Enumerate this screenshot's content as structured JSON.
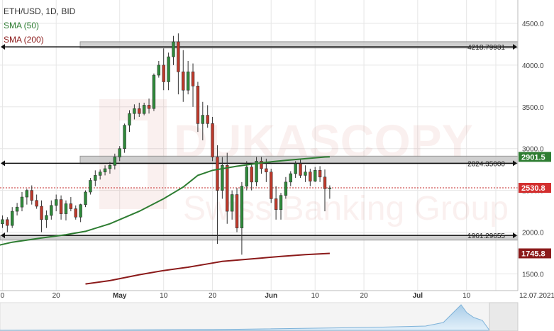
{
  "header": {
    "symbol": "ETH/USD, 1D, BID"
  },
  "watermark": {
    "line1": "DUKASCOPY",
    "line2": "Swiss Banking Group"
  },
  "colors": {
    "up": "#2e8b3a",
    "down": "#c0392b",
    "sma50": "#2e7d32",
    "sma200": "#8b1a1a",
    "grid": "#e6e6e6",
    "last": "#c62828"
  },
  "chart_data": {
    "type": "candlestick",
    "title": "",
    "ylim": [
      1300,
      4780
    ],
    "yticks": [
      1500,
      2000,
      2500,
      3000,
      3500,
      4000,
      4500
    ],
    "ytick_labels": [
      "1500.0",
      "2000.0",
      "2500.0",
      "3000.0",
      "3500.0",
      "4000.0",
      "4500.0"
    ],
    "x_range": [
      0,
      106
    ],
    "xticks": [
      {
        "x": 0,
        "label": "0",
        "bold": false
      },
      {
        "x": 11,
        "label": "20",
        "bold": false
      },
      {
        "x": 24,
        "label": "May",
        "bold": true
      },
      {
        "x": 33,
        "label": "10",
        "bold": false
      },
      {
        "x": 43,
        "label": "20",
        "bold": false
      },
      {
        "x": 55,
        "label": "Jun",
        "bold": true
      },
      {
        "x": 64,
        "label": "10",
        "bold": false
      },
      {
        "x": 74,
        "label": "20",
        "bold": false
      },
      {
        "x": 85,
        "label": "Jul",
        "bold": true
      },
      {
        "x": 95,
        "label": "10",
        "bold": false
      },
      {
        "x": 101,
        "label": "12.07.2021",
        "bold": false
      }
    ],
    "candles": [
      [
        2100,
        2200,
        2050,
        2150
      ],
      [
        2150,
        2180,
        2000,
        2080
      ],
      [
        2080,
        2300,
        2050,
        2250
      ],
      [
        2250,
        2350,
        2200,
        2300
      ],
      [
        2300,
        2480,
        2250,
        2420
      ],
      [
        2420,
        2520,
        2330,
        2500
      ],
      [
        2500,
        2560,
        2330,
        2380
      ],
      [
        2380,
        2450,
        2280,
        2310
      ],
      [
        2310,
        2380,
        2000,
        2150
      ],
      [
        2150,
        2260,
        2050,
        2200
      ],
      [
        2200,
        2380,
        2150,
        2320
      ],
      [
        2320,
        2450,
        2250,
        2390
      ],
      [
        2390,
        2440,
        2150,
        2220
      ],
      [
        2220,
        2380,
        2140,
        2340
      ],
      [
        2340,
        2420,
        2250,
        2280
      ],
      [
        2280,
        2320,
        2150,
        2180
      ],
      [
        2180,
        2340,
        2120,
        2330
      ],
      [
        2330,
        2500,
        2300,
        2480
      ],
      [
        2480,
        2650,
        2450,
        2620
      ],
      [
        2620,
        2740,
        2550,
        2680
      ],
      [
        2680,
        2750,
        2630,
        2720
      ],
      [
        2720,
        2800,
        2680,
        2760
      ],
      [
        2760,
        2840,
        2700,
        2800
      ],
      [
        2800,
        2940,
        2750,
        2900
      ],
      [
        2900,
        3030,
        2850,
        3000
      ],
      [
        3000,
        3300,
        2950,
        3280
      ],
      [
        3280,
        3460,
        3200,
        3420
      ],
      [
        3420,
        3530,
        3350,
        3480
      ],
      [
        3480,
        3550,
        3380,
        3420
      ],
      [
        3420,
        3550,
        3400,
        3520
      ],
      [
        3520,
        3600,
        3420,
        3480
      ],
      [
        3480,
        3900,
        3450,
        3880
      ],
      [
        3880,
        4050,
        3850,
        4000
      ],
      [
        4000,
        4200,
        3700,
        3800
      ],
      [
        3800,
        4150,
        3700,
        4100
      ],
      [
        4100,
        4350,
        4000,
        4280
      ],
      [
        4280,
        4380,
        3650,
        3920
      ],
      [
        3920,
        4180,
        3560,
        3700
      ],
      [
        3700,
        4050,
        3650,
        3920
      ],
      [
        3920,
        4020,
        3500,
        3750
      ],
      [
        3750,
        3800,
        3200,
        3300
      ],
      [
        3300,
        3560,
        3100,
        3400
      ],
      [
        3400,
        3520,
        3250,
        3300
      ],
      [
        3300,
        3380,
        2850,
        2900
      ],
      [
        2900,
        3040,
        1860,
        2500
      ],
      [
        2500,
        2900,
        2400,
        2800
      ],
      [
        2800,
        2950,
        2100,
        2250
      ],
      [
        2250,
        2500,
        2150,
        2450
      ],
      [
        2450,
        2530,
        2000,
        2050
      ],
      [
        2050,
        2600,
        1730,
        2550
      ],
      [
        2550,
        2850,
        2500,
        2780
      ],
      [
        2780,
        2820,
        2500,
        2600
      ],
      [
        2600,
        2900,
        2550,
        2850
      ],
      [
        2850,
        2900,
        2700,
        2760
      ],
      [
        2760,
        2880,
        2600,
        2720
      ],
      [
        2720,
        2760,
        2350,
        2400
      ],
      [
        2400,
        2550,
        2150,
        2270
      ],
      [
        2270,
        2470,
        2150,
        2440
      ],
      [
        2440,
        2660,
        2400,
        2600
      ],
      [
        2600,
        2730,
        2550,
        2700
      ],
      [
        2700,
        2850,
        2650,
        2820
      ],
      [
        2820,
        2880,
        2650,
        2680
      ],
      [
        2680,
        2800,
        2600,
        2720
      ],
      [
        2720,
        2760,
        2550,
        2610
      ],
      [
        2610,
        2780,
        2600,
        2740
      ],
      [
        2740,
        2790,
        2600,
        2660
      ],
      [
        2660,
        2750,
        2250,
        2520
      ],
      [
        2520,
        2560,
        2400,
        2530
      ]
    ],
    "sma50": [
      [
        17,
        2010
      ],
      [
        22,
        2100
      ],
      [
        28,
        2250
      ],
      [
        33,
        2400
      ],
      [
        37,
        2540
      ],
      [
        40,
        2680
      ],
      [
        43,
        2740
      ],
      [
        48,
        2790
      ],
      [
        53,
        2830
      ],
      [
        58,
        2860
      ],
      [
        62,
        2880
      ],
      [
        66,
        2900
      ],
      [
        67,
        2901.5
      ]
    ],
    "sma200": [
      [
        17,
        1380
      ],
      [
        22,
        1420
      ],
      [
        28,
        1490
      ],
      [
        33,
        1540
      ],
      [
        38,
        1580
      ],
      [
        42,
        1620
      ],
      [
        45,
        1650
      ],
      [
        48,
        1665
      ],
      [
        53,
        1690
      ],
      [
        57,
        1710
      ],
      [
        62,
        1730
      ],
      [
        67,
        1745.8
      ]
    ],
    "levels": [
      {
        "price": 4218.79931,
        "label": "4218.79931",
        "band": [
          4205,
          4280
        ]
      },
      {
        "price": 2824.35,
        "label": "2824.35000",
        "band": [
          2820,
          2910
        ]
      },
      {
        "price": 1961.29655,
        "label": "1961.29655",
        "band": [
          1905,
          1960
        ]
      }
    ],
    "last_price": 2530.8,
    "last_price_label": "2530.8",
    "sma50_label": "SMA (50)",
    "sma200_label": "SMA (200)",
    "sma50_last": 2901.5,
    "sma50_last_label": "2901.5",
    "sma200_last": 1745.8,
    "sma200_last_label": "1745.8",
    "grid": true,
    "navigator": true
  }
}
